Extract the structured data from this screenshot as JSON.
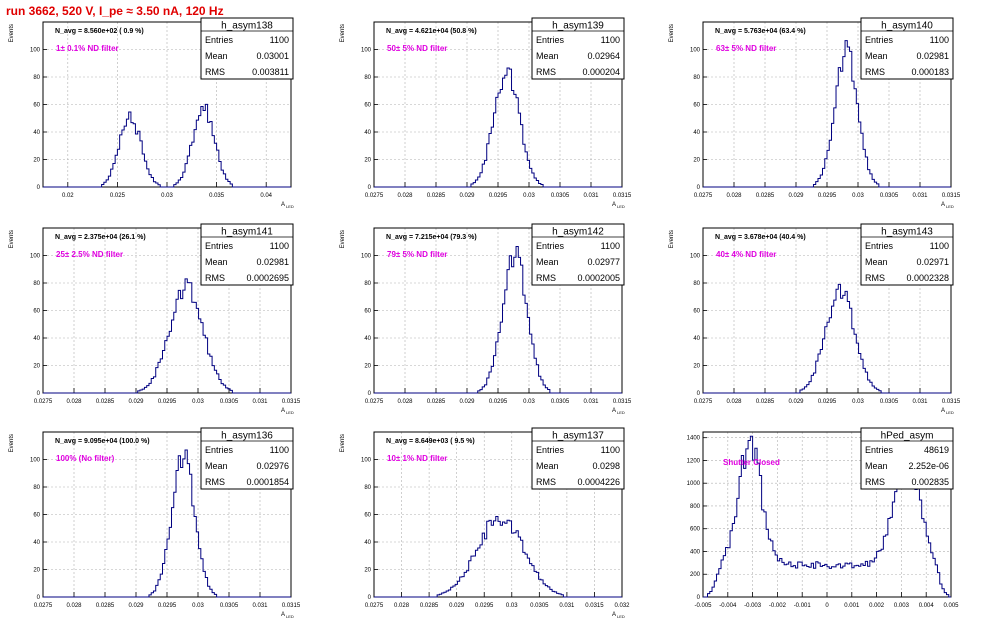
{
  "header": {
    "title": "run 3662,   520 V, I_pe ≈ 3.50 nA, 120 Hz"
  },
  "colors": {
    "histogram_line": "#000080",
    "annotation": "#e000e0",
    "title_red": "#e00000",
    "grid": "#b0b0b0"
  },
  "chart_data": [
    {
      "type": "histogram",
      "name": "h_asym138",
      "navg": "N_avg = 8.560e+02 ( 0.9 %)",
      "annotation": "1± 0.1% ND filter",
      "stats": {
        "Entries": "1100",
        "Mean": "0.03001",
        "RMS": "0.003811"
      },
      "xlabel": "A",
      "xlabel_sub": "LED",
      "ylabel": "Events",
      "xlim": [
        0.0175,
        0.0425
      ],
      "ylim": [
        0,
        120
      ],
      "xticks": [
        "0.02",
        "0.025",
        "0.03",
        "0.035",
        "0.04"
      ],
      "xtick_values": [
        0.02,
        0.025,
        0.03,
        0.035,
        0.04
      ],
      "yticks": [
        0,
        20,
        40,
        60,
        80,
        100
      ],
      "shape": {
        "peaks": [
          [
            0.0263,
            0.0011,
            50
          ],
          [
            0.0337,
            0.0011,
            58
          ]
        ]
      }
    },
    {
      "type": "histogram",
      "name": "h_asym139",
      "navg": "N_avg = 4.621e+04 (50.8 %)",
      "annotation": "50± 5% ND filter",
      "stats": {
        "Entries": "1100",
        "Mean": "0.02964",
        "RMS": "0.000204"
      },
      "xlabel": "A",
      "xlabel_sub": "LED",
      "ylabel": "Events",
      "xlim": [
        0.0275,
        0.0315
      ],
      "ylim": [
        0,
        120
      ],
      "xticks": [
        "0.0275",
        "0.028",
        "0.0285",
        "0.029",
        "0.0295",
        "0.03",
        "0.0305",
        "0.031",
        "0.0315"
      ],
      "xtick_values": [
        0.0275,
        0.028,
        0.0285,
        0.029,
        0.0295,
        0.03,
        0.0305,
        0.031,
        0.0315
      ],
      "yticks": [
        0,
        20,
        40,
        60,
        80,
        100
      ],
      "shape": {
        "peaks": [
          [
            0.02964,
            0.000204,
            86
          ]
        ]
      }
    },
    {
      "type": "histogram",
      "name": "h_asym140",
      "navg": "N_avg = 5.763e+04 (63.4 %)",
      "annotation": "63± 5% ND filter",
      "stats": {
        "Entries": "1100",
        "Mean": "0.02981",
        "RMS": "0.000183"
      },
      "xlabel": "A",
      "xlabel_sub": "LED",
      "ylabel": "Events",
      "xlim": [
        0.0275,
        0.0315
      ],
      "ylim": [
        0,
        120
      ],
      "xticks": [
        "0.0275",
        "0.028",
        "0.0285",
        "0.029",
        "0.0295",
        "0.03",
        "0.0305",
        "0.031",
        "0.0315"
      ],
      "xtick_values": [
        0.0275,
        0.028,
        0.0285,
        0.029,
        0.0295,
        0.03,
        0.0305,
        0.031,
        0.0315
      ],
      "yticks": [
        0,
        20,
        40,
        60,
        80,
        100
      ],
      "shape": {
        "peaks": [
          [
            0.02981,
            0.000183,
            100
          ]
        ]
      }
    },
    {
      "type": "histogram",
      "name": "h_asym141",
      "navg": "N_avg = 2.375e+04 (26.1 %)",
      "annotation": "25± 2.5% ND filter",
      "stats": {
        "Entries": "1100",
        "Mean": "0.02981",
        "RMS": "0.0002695"
      },
      "xlabel": "A",
      "xlabel_sub": "LED",
      "ylabel": "Events",
      "xlim": [
        0.0275,
        0.0315
      ],
      "ylim": [
        0,
        120
      ],
      "xticks": [
        "0.0275",
        "0.028",
        "0.0285",
        "0.029",
        "0.0295",
        "0.03",
        "0.0305",
        "0.031",
        "0.0315"
      ],
      "xtick_values": [
        0.0275,
        0.028,
        0.0285,
        0.029,
        0.0295,
        0.03,
        0.0305,
        0.031,
        0.0315
      ],
      "yticks": [
        0,
        20,
        40,
        60,
        80,
        100
      ],
      "shape": {
        "peaks": [
          [
            0.02981,
            0.0002695,
            78
          ]
        ]
      }
    },
    {
      "type": "histogram",
      "name": "h_asym142",
      "navg": "N_avg = 7.215e+04 (79.3 %)",
      "annotation": "79± 5% ND filter",
      "stats": {
        "Entries": "1100",
        "Mean": "0.02977",
        "RMS": "0.0002005"
      },
      "xlabel": "A",
      "xlabel_sub": "LED",
      "ylabel": "Events",
      "xlim": [
        0.0275,
        0.0315
      ],
      "ylim": [
        0,
        120
      ],
      "xticks": [
        "0.0275",
        "0.028",
        "0.0285",
        "0.029",
        "0.0295",
        "0.03",
        "0.0305",
        "0.031",
        "0.0315"
      ],
      "xtick_values": [
        0.0275,
        0.028,
        0.0285,
        0.029,
        0.0295,
        0.03,
        0.0305,
        0.031,
        0.0315
      ],
      "yticks": [
        0,
        20,
        40,
        60,
        80,
        100
      ],
      "shape": {
        "peaks": [
          [
            0.02977,
            0.0002005,
            102
          ]
        ]
      }
    },
    {
      "type": "histogram",
      "name": "h_asym143",
      "navg": "N_avg = 3.678e+04 (40.4 %)",
      "annotation": "40± 4% ND filter",
      "stats": {
        "Entries": "1100",
        "Mean": "0.02971",
        "RMS": "0.0002328"
      },
      "xlabel": "A",
      "xlabel_sub": "LED",
      "ylabel": "Events",
      "xlim": [
        0.0275,
        0.0315
      ],
      "ylim": [
        0,
        120
      ],
      "xticks": [
        "0.0275",
        "0.028",
        "0.0285",
        "0.029",
        "0.0295",
        "0.03",
        "0.0305",
        "0.031",
        "0.0315"
      ],
      "xtick_values": [
        0.0275,
        0.028,
        0.0285,
        0.029,
        0.0295,
        0.03,
        0.0305,
        0.031,
        0.0315
      ],
      "yticks": [
        0,
        20,
        40,
        60,
        80,
        100
      ],
      "shape": {
        "peaks": [
          [
            0.02971,
            0.0002328,
            76
          ]
        ]
      }
    },
    {
      "type": "histogram",
      "name": "h_asym136",
      "navg": "N_avg = 9.095e+04 (100.0 %)",
      "annotation": "100% (No filter)",
      "stats": {
        "Entries": "1100",
        "Mean": "0.02976",
        "RMS": "0.0001854"
      },
      "xlabel": "A",
      "xlabel_sub": "LED",
      "ylabel": "Events",
      "xlim": [
        0.0275,
        0.0315
      ],
      "ylim": [
        0,
        120
      ],
      "xticks": [
        "0.0275",
        "0.028",
        "0.0285",
        "0.029",
        "0.0295",
        "0.03",
        "0.0305",
        "0.031",
        "0.0315"
      ],
      "xtick_values": [
        0.0275,
        0.028,
        0.0285,
        0.029,
        0.0295,
        0.03,
        0.0305,
        0.031,
        0.0315
      ],
      "yticks": [
        0,
        20,
        40,
        60,
        80,
        100
      ],
      "shape": {
        "peaks": [
          [
            0.02976,
            0.0001854,
            104
          ]
        ]
      }
    },
    {
      "type": "histogram",
      "name": "h_asym137",
      "navg": "N_avg = 8.649e+03 ( 9.5 %)",
      "annotation": "10± 1% ND filter",
      "stats": {
        "Entries": "1100",
        "Mean": "0.0298",
        "RMS": "0.0004226"
      },
      "xlabel": "A",
      "xlabel_sub": "LED",
      "ylabel": "Events",
      "xlim": [
        0.0275,
        0.032
      ],
      "ylim": [
        0,
        120
      ],
      "xticks": [
        "0.0275",
        "0.028",
        "0.0285",
        "0.029",
        "0.0295",
        "0.03",
        "0.0305",
        "0.031",
        "0.0315",
        "0.032"
      ],
      "xtick_values": [
        0.0275,
        0.028,
        0.0285,
        0.029,
        0.0295,
        0.03,
        0.0305,
        0.031,
        0.0315,
        0.032
      ],
      "yticks": [
        0,
        20,
        40,
        60,
        80,
        100
      ],
      "shape": {
        "peaks": [
          [
            0.0298,
            0.0004226,
            58
          ]
        ]
      }
    },
    {
      "type": "histogram",
      "name": "hPed_asym",
      "navg": "",
      "annotation": "Shutter Closed",
      "stats": {
        "Entries": "48619",
        "Mean": "2.252e-06",
        "RMS": "0.002835"
      },
      "xlabel": "",
      "xlabel_sub": "",
      "ylabel": "",
      "xlim": [
        -0.005,
        0.005
      ],
      "ylim": [
        0,
        1450
      ],
      "xticks": [
        "-0.005",
        "-0.004",
        "-0.003",
        "-0.002",
        "-0.001",
        "0",
        "0.001",
        "0.002",
        "0.003",
        "0.004",
        "0.005"
      ],
      "xtick_values": [
        -0.005,
        -0.004,
        -0.003,
        -0.002,
        -0.001,
        0,
        0.001,
        0.002,
        0.003,
        0.004,
        0.005
      ],
      "yticks": [
        0,
        200,
        400,
        600,
        800,
        1000,
        1200,
        1400
      ],
      "shape": {
        "peaks": [
          [
            -0.0031,
            0.00045,
            1100
          ],
          [
            0.0032,
            0.00055,
            900
          ]
        ],
        "base": 280,
        "edges": [
          -0.0045,
          0.0045
        ]
      }
    }
  ]
}
